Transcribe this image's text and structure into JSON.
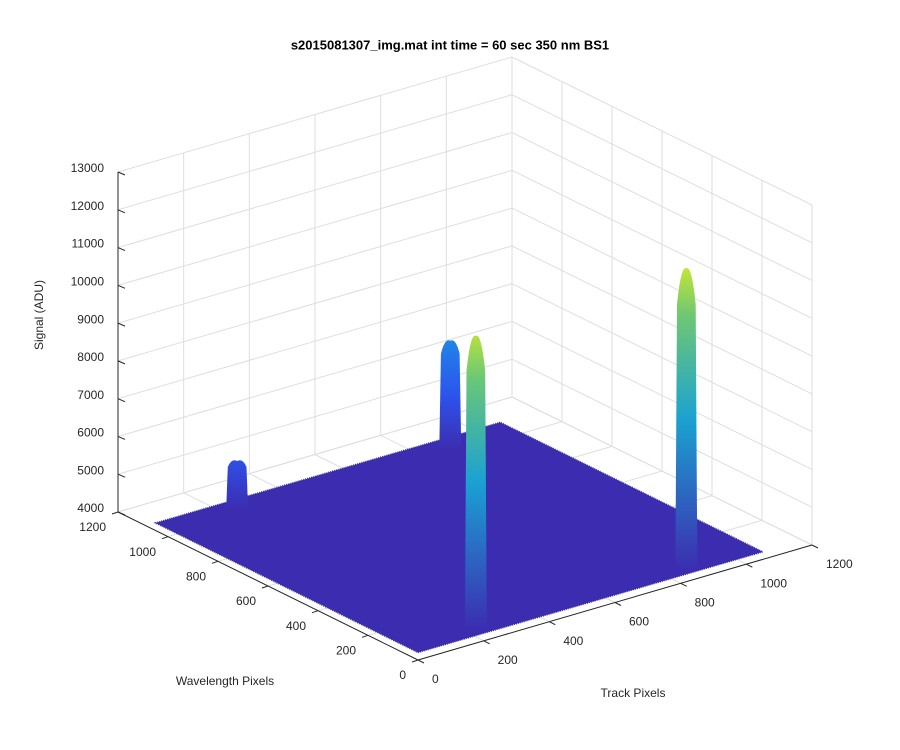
{
  "chart_data": {
    "type": "surface",
    "title": "s2015081307_img.mat int time = 60 sec  350 nm BS1",
    "xlabel": "Track Pixels",
    "ylabel": "Wavelength Pixels",
    "zlabel": "Signal (ADU)",
    "xlim": [
      0,
      1200
    ],
    "ylim": [
      0,
      1200
    ],
    "zlim": [
      4000,
      13000
    ],
    "xticks": [
      0,
      200,
      400,
      600,
      800,
      1000,
      1200
    ],
    "yticks": [
      0,
      200,
      400,
      600,
      800,
      1000,
      1200
    ],
    "zticks": [
      4000,
      5000,
      6000,
      7000,
      8000,
      9000,
      10000,
      11000,
      12000,
      13000
    ],
    "grid": true,
    "colormap": [
      "#3e26a8",
      "#2a58f2",
      "#1c97e0",
      "#19b9b0",
      "#7cca6a",
      "#f9fb0e"
    ],
    "surface": {
      "xlim": [
        0,
        1050
      ],
      "ylim": [
        0,
        1050
      ],
      "floor": 4200
    },
    "peaks": {
      "x": [
        846,
        206,
        196,
        831
      ],
      "y": [
        982,
        994,
        26,
        18
      ],
      "z": [
        7100,
        5500,
        12000,
        12200
      ]
    }
  }
}
